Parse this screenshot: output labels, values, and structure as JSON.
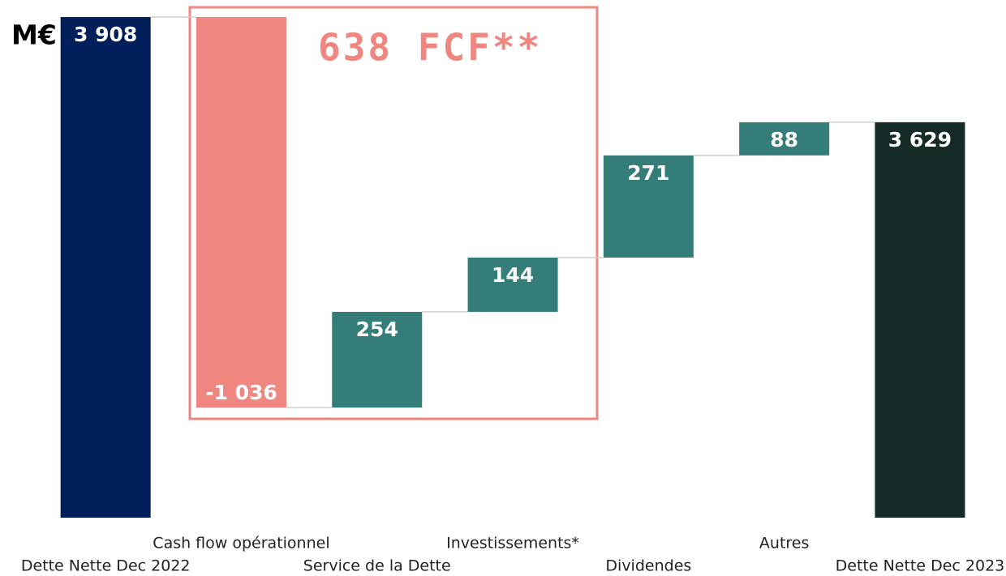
{
  "chart_data": {
    "type": "waterfall",
    "unit": "M€",
    "annotation": "638 FCF**",
    "categories": [
      "Dette Nette Dec 2022",
      "Cash flow opérationnel",
      "Service de la Dette",
      "Investissements*",
      "Dividendes",
      "Autres",
      "Dette Nette Dec 2023"
    ],
    "measure": [
      "total",
      "relative",
      "relative",
      "relative",
      "relative",
      "relative",
      "total"
    ],
    "values": [
      3908,
      -1036,
      254,
      144,
      271,
      88,
      3629
    ],
    "value_labels": [
      "3 908",
      "-1 036",
      "254",
      "144",
      "271",
      "88",
      "3 629"
    ],
    "colors": [
      "#001f5b",
      "#f08680",
      "#357d78",
      "#357d78",
      "#357d78",
      "#357d78",
      "#142b28"
    ],
    "ylim": [
      2580,
      3950
    ]
  }
}
